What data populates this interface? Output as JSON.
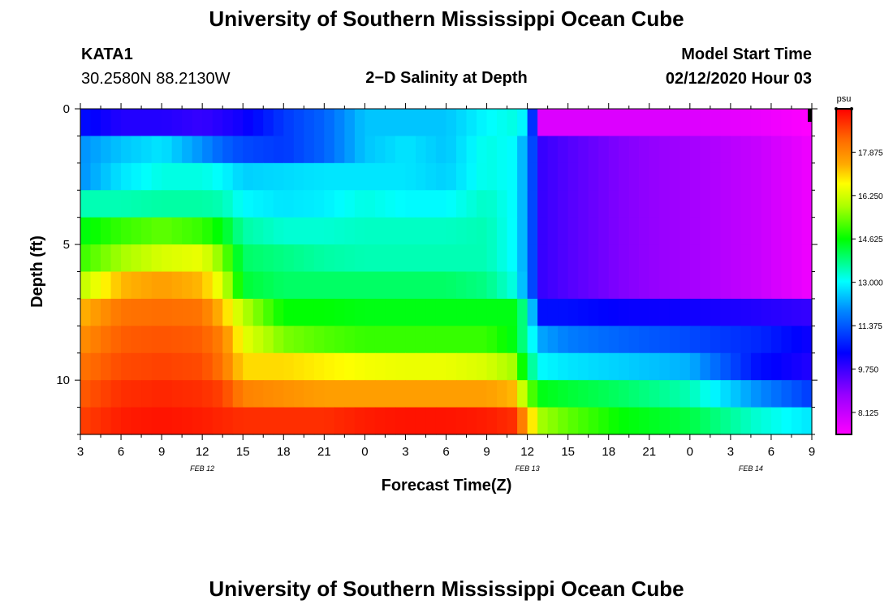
{
  "header": {
    "title_top": "University of Southern Mississippi Ocean Cube",
    "title_bottom": "University of Southern Mississippi Ocean Cube",
    "station": "KATA1",
    "coords": "30.2580N 88.2130W",
    "plot_title": "2−D Salinity at Depth",
    "model_label": "Model Start Time",
    "model_time": "02/12/2020 Hour 03"
  },
  "chart_data": {
    "type": "heatmap",
    "title": "2−D Salinity at Depth",
    "xlabel": "Forecast Time(Z)",
    "ylabel": "Depth (ft)",
    "x_ticks": [
      "3",
      "6",
      "9",
      "12",
      "15",
      "18",
      "21",
      "0",
      "3",
      "6",
      "9",
      "12",
      "15",
      "18",
      "21",
      "0",
      "3",
      "6",
      "9"
    ],
    "x_range_hours": [
      0,
      54
    ],
    "date_labels": [
      {
        "text": "FEB 12",
        "hour": 9
      },
      {
        "text": "FEB 13",
        "hour": 33
      },
      {
        "text": "FEB 14",
        "hour": 49.5
      }
    ],
    "y_ticks": [
      "0",
      "5",
      "10"
    ],
    "y_tick_values": [
      0,
      5,
      10
    ],
    "y_range_ft": [
      0,
      12
    ],
    "colorbar": {
      "unit": "psu",
      "labels": [
        "17.875",
        "16.250",
        "14.625",
        "13.000",
        "11.375",
        "9.750",
        "8.125"
      ],
      "min": 7.3,
      "max": 19.5
    },
    "depth_levels_ft": [
      0.5,
      1.5,
      2.5,
      3.5,
      4.5,
      5.5,
      6.5,
      7.5,
      8.5,
      9.5,
      10.5,
      11.5
    ],
    "time_points_h": [
      0,
      3,
      6,
      9,
      10.5,
      12,
      15,
      18,
      21,
      24,
      27,
      30,
      32,
      33,
      34,
      36,
      40,
      45,
      50,
      54
    ],
    "salinity_psu": [
      [
        10.5,
        10.0,
        10.0,
        9.8,
        10.0,
        10.2,
        11.0,
        11.5,
        12.5,
        12.5,
        12.5,
        13.0,
        13.2,
        12.8,
        7.8,
        7.8,
        7.8,
        7.8,
        7.6,
        7.3
      ],
      [
        12.0,
        12.5,
        12.8,
        12.0,
        11.5,
        11.2,
        11.0,
        11.5,
        12.5,
        12.8,
        12.5,
        13.2,
        13.0,
        12.0,
        9.8,
        9.5,
        9.0,
        8.6,
        8.1,
        7.5
      ],
      [
        12.0,
        12.8,
        13.2,
        13.2,
        13.0,
        12.6,
        12.7,
        12.8,
        12.8,
        12.8,
        12.6,
        13.2,
        13.0,
        12.0,
        9.8,
        9.5,
        9.0,
        8.6,
        8.1,
        7.5
      ],
      [
        13.5,
        13.5,
        13.6,
        13.6,
        13.5,
        13.0,
        12.8,
        12.9,
        13.2,
        13.0,
        13.0,
        13.4,
        13.0,
        12.0,
        9.8,
        9.5,
        9.0,
        8.6,
        8.1,
        7.5
      ],
      [
        14.5,
        15.0,
        15.3,
        15.0,
        14.5,
        13.6,
        13.3,
        13.3,
        13.4,
        13.4,
        13.4,
        13.5,
        13.0,
        12.0,
        9.8,
        9.5,
        9.0,
        8.6,
        8.1,
        7.5
      ],
      [
        15.0,
        15.8,
        16.3,
        16.5,
        15.5,
        14.0,
        13.8,
        13.6,
        13.5,
        13.5,
        13.5,
        13.5,
        13.0,
        12.0,
        9.8,
        9.5,
        9.0,
        8.6,
        8.1,
        7.5
      ],
      [
        16.0,
        17.3,
        17.6,
        17.3,
        16.3,
        14.3,
        14.0,
        14.0,
        14.0,
        14.0,
        14.0,
        13.8,
        13.2,
        12.0,
        9.8,
        9.5,
        9.0,
        8.6,
        8.1,
        7.5
      ],
      [
        17.3,
        18.2,
        18.3,
        18.2,
        17.2,
        16.0,
        14.6,
        14.6,
        14.5,
        14.5,
        14.5,
        14.5,
        14.5,
        13.5,
        10.5,
        10.5,
        10.3,
        10.2,
        10.0,
        9.8
      ],
      [
        17.8,
        18.5,
        18.6,
        18.5,
        18.0,
        16.5,
        15.5,
        15.2,
        15.0,
        15.0,
        15.0,
        15.0,
        14.5,
        13.5,
        12.2,
        11.8,
        11.5,
        11.2,
        10.8,
        10.2
      ],
      [
        18.2,
        18.7,
        18.8,
        18.7,
        18.2,
        17.0,
        17.0,
        16.8,
        16.6,
        16.5,
        16.5,
        16.3,
        15.8,
        14.0,
        13.0,
        12.8,
        12.6,
        12.3,
        10.5,
        10.0
      ],
      [
        18.5,
        19.0,
        19.1,
        19.0,
        18.8,
        18.0,
        17.8,
        17.6,
        17.6,
        17.6,
        17.6,
        17.6,
        17.3,
        15.5,
        14.5,
        14.3,
        14.0,
        13.5,
        12.0,
        11.0
      ],
      [
        18.8,
        19.2,
        19.3,
        19.2,
        19.1,
        19.0,
        19.0,
        19.0,
        19.2,
        19.3,
        19.3,
        19.2,
        19.0,
        17.5,
        15.8,
        15.3,
        14.6,
        14.2,
        13.3,
        12.8
      ]
    ]
  }
}
